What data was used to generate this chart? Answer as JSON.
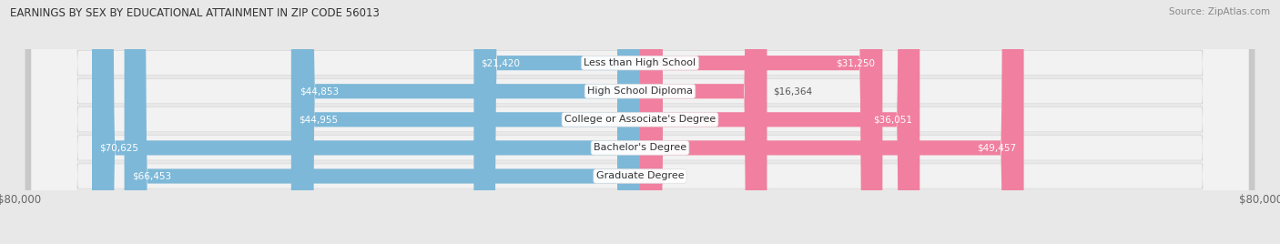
{
  "title": "EARNINGS BY SEX BY EDUCATIONAL ATTAINMENT IN ZIP CODE 56013",
  "source": "Source: ZipAtlas.com",
  "categories": [
    "Graduate Degree",
    "Bachelor's Degree",
    "College or Associate's Degree",
    "High School Diploma",
    "Less than High School"
  ],
  "male_values": [
    66453,
    70625,
    44955,
    44853,
    21420
  ],
  "female_values": [
    0,
    49457,
    36051,
    16364,
    31250
  ],
  "male_color": "#7db8d8",
  "female_color": "#f07fa0",
  "female_color_light": "#f5b0c5",
  "male_label_color_inside": "#ffffff",
  "female_label_color_inside": "#ffffff",
  "male_label_color_outside": "#555555",
  "female_label_color_outside": "#555555",
  "bar_height": 0.52,
  "max_value": 80000,
  "bg_color": "#e8e8e8",
  "row_bg_color": "#f2f2f2",
  "row_border_color": "#d0d0d0",
  "legend_male_color": "#7db8d8",
  "legend_female_color": "#f07fa0",
  "axis_label_left": "$80,000",
  "axis_label_right": "$80,000",
  "inside_threshold": 8000,
  "female_inside_threshold": 25000
}
